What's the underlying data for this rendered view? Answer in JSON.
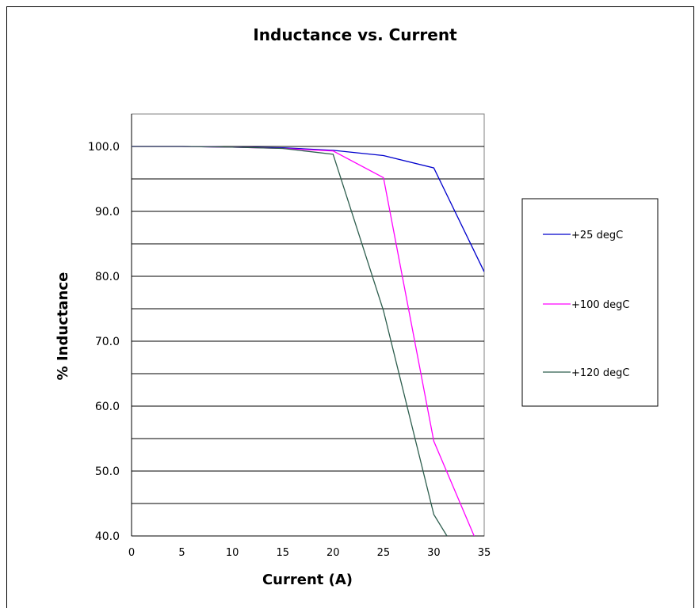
{
  "chart_data": {
    "type": "line",
    "title": "Inductance vs. Current",
    "xlabel": "Current (A)",
    "ylabel": "% Inductance",
    "xlim": [
      0,
      35
    ],
    "ylim": [
      40,
      105
    ],
    "x_ticks": [
      "0",
      "5",
      "10",
      "15",
      "20",
      "25",
      "30",
      "35"
    ],
    "y_ticks": [
      "40.0",
      "50.0",
      "60.0",
      "70.0",
      "80.0",
      "90.0",
      "100.0"
    ],
    "grid": "horizontal",
    "legend_position": "right",
    "series": [
      {
        "name": "+25 degC",
        "color": "#0000cc",
        "points": [
          [
            0,
            100
          ],
          [
            5,
            100
          ],
          [
            10,
            99.9
          ],
          [
            15,
            99.8
          ],
          [
            20,
            99.4
          ],
          [
            25,
            98.6
          ],
          [
            30,
            96.7
          ],
          [
            35,
            80.7
          ]
        ]
      },
      {
        "name": "+100 degC",
        "color": "#ff00ff",
        "points": [
          [
            0,
            100
          ],
          [
            5,
            100
          ],
          [
            10,
            99.9
          ],
          [
            15,
            99.7
          ],
          [
            20,
            99.3
          ],
          [
            25,
            95.2
          ],
          [
            30,
            54.6
          ],
          [
            34,
            40
          ]
        ]
      },
      {
        "name": "+120 degC",
        "color": "#2e5e4e",
        "points": [
          [
            0,
            100
          ],
          [
            5,
            100
          ],
          [
            10,
            99.9
          ],
          [
            15,
            99.7
          ],
          [
            20,
            98.8
          ],
          [
            25,
            74.7
          ],
          [
            30,
            43.3
          ],
          [
            31.3,
            40
          ]
        ]
      }
    ]
  }
}
